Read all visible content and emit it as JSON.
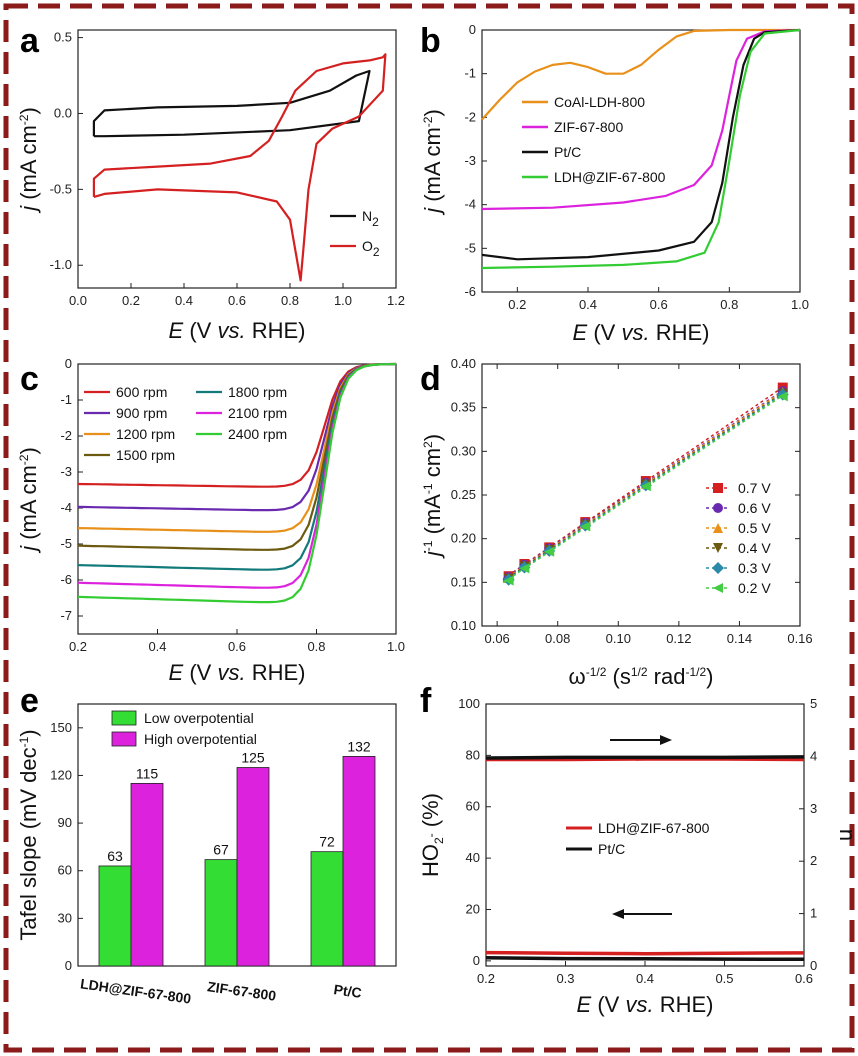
{
  "colors": {
    "border": "#8b1a1a",
    "green": "#33cc33",
    "magenta": "#dd22dd",
    "orange": "#e8901a",
    "black": "#111111",
    "red": "#d42020",
    "purple": "#6a2ab0",
    "olive": "#6b5a10",
    "teal": "#127a7a",
    "diamond_blue": "#2a8aa8",
    "dot_green": "#44cc44"
  },
  "chart_data": [
    {
      "panel": "a",
      "type": "line",
      "xlabel": "E (V vs. RHE)",
      "ylabel": "j (mA cm-2)",
      "xlim": [
        0,
        1.2
      ],
      "ylim": [
        -1.15,
        0.55
      ],
      "xticks": [
        "0.0",
        "0.2",
        "0.4",
        "0.6",
        "0.8",
        "1.0",
        "1.2"
      ],
      "xtick_vals": [
        0,
        0.2,
        0.4,
        0.6,
        0.8,
        1.0,
        1.2
      ],
      "yticks": [
        "0.5",
        "0.0",
        "-0.5",
        "-1.0"
      ],
      "ytick_vals": [
        0.5,
        0,
        -0.5,
        -1.0
      ],
      "series": [
        {
          "name": "N2",
          "label": "N",
          "sub": "2",
          "color": "#111111",
          "points": [
            [
              0.06,
              -0.15
            ],
            [
              0.06,
              -0.05
            ],
            [
              0.1,
              0.02
            ],
            [
              0.3,
              0.04
            ],
            [
              0.6,
              0.05
            ],
            [
              0.8,
              0.07
            ],
            [
              0.95,
              0.15
            ],
            [
              1.05,
              0.25
            ],
            [
              1.1,
              0.28
            ],
            [
              1.06,
              -0.05
            ],
            [
              0.8,
              -0.11
            ],
            [
              0.4,
              -0.14
            ],
            [
              0.1,
              -0.15
            ],
            [
              0.06,
              -0.15
            ]
          ]
        },
        {
          "name": "O2",
          "label": "O",
          "sub": "2",
          "color": "#d42020",
          "points": [
            [
              0.06,
              -0.55
            ],
            [
              0.06,
              -0.43
            ],
            [
              0.1,
              -0.37
            ],
            [
              0.3,
              -0.35
            ],
            [
              0.5,
              -0.33
            ],
            [
              0.65,
              -0.28
            ],
            [
              0.72,
              -0.18
            ],
            [
              0.77,
              -0.02
            ],
            [
              0.82,
              0.15
            ],
            [
              0.9,
              0.28
            ],
            [
              1.0,
              0.33
            ],
            [
              1.1,
              0.35
            ],
            [
              1.15,
              0.37
            ],
            [
              1.16,
              0.39
            ],
            [
              1.15,
              0.15
            ],
            [
              1.06,
              -0.02
            ],
            [
              0.96,
              -0.1
            ],
            [
              0.9,
              -0.2
            ],
            [
              0.87,
              -0.5
            ],
            [
              0.85,
              -0.9
            ],
            [
              0.84,
              -1.1
            ],
            [
              0.82,
              -0.9
            ],
            [
              0.8,
              -0.7
            ],
            [
              0.75,
              -0.58
            ],
            [
              0.6,
              -0.52
            ],
            [
              0.3,
              -0.5
            ],
            [
              0.1,
              -0.53
            ],
            [
              0.06,
              -0.55
            ]
          ]
        }
      ]
    },
    {
      "panel": "b",
      "type": "line",
      "xlabel": "E (V vs. RHE)",
      "ylabel": "j (mA cm-2)",
      "xlim": [
        0.1,
        1.0
      ],
      "ylim": [
        -6,
        0
      ],
      "xticks": [
        "0.2",
        "0.4",
        "0.6",
        "0.8",
        "1.0"
      ],
      "xtick_vals": [
        0.2,
        0.4,
        0.6,
        0.8,
        1.0
      ],
      "yticks": [
        "0",
        "-1",
        "-2",
        "-3",
        "-4",
        "-5",
        "-6"
      ],
      "ytick_vals": [
        0,
        -1,
        -2,
        -3,
        -4,
        -5,
        -6
      ],
      "series": [
        {
          "name": "CoAl-LDH-800",
          "color": "#e8901a",
          "points": [
            [
              0.1,
              -2.05
            ],
            [
              0.15,
              -1.6
            ],
            [
              0.2,
              -1.2
            ],
            [
              0.25,
              -0.95
            ],
            [
              0.3,
              -0.8
            ],
            [
              0.35,
              -0.75
            ],
            [
              0.4,
              -0.85
            ],
            [
              0.45,
              -1.0
            ],
            [
              0.5,
              -1.0
            ],
            [
              0.55,
              -0.8
            ],
            [
              0.6,
              -0.45
            ],
            [
              0.65,
              -0.15
            ],
            [
              0.7,
              -0.02
            ],
            [
              0.8,
              0
            ],
            [
              1.0,
              0
            ]
          ]
        },
        {
          "name": "ZIF-67-800",
          "color": "#dd22dd",
          "points": [
            [
              0.1,
              -4.1
            ],
            [
              0.3,
              -4.07
            ],
            [
              0.5,
              -3.95
            ],
            [
              0.62,
              -3.8
            ],
            [
              0.7,
              -3.55
            ],
            [
              0.75,
              -3.1
            ],
            [
              0.78,
              -2.3
            ],
            [
              0.8,
              -1.5
            ],
            [
              0.82,
              -0.7
            ],
            [
              0.85,
              -0.2
            ],
            [
              0.9,
              -0.03
            ],
            [
              1.0,
              0
            ]
          ]
        },
        {
          "name": "Pt/C",
          "color": "#111111",
          "points": [
            [
              0.1,
              -5.15
            ],
            [
              0.2,
              -5.25
            ],
            [
              0.4,
              -5.2
            ],
            [
              0.6,
              -5.05
            ],
            [
              0.7,
              -4.85
            ],
            [
              0.75,
              -4.4
            ],
            [
              0.78,
              -3.5
            ],
            [
              0.81,
              -2.0
            ],
            [
              0.84,
              -0.8
            ],
            [
              0.87,
              -0.2
            ],
            [
              0.9,
              -0.05
            ],
            [
              1.0,
              0
            ]
          ]
        },
        {
          "name": "LDH@ZIF-67-800",
          "color": "#33cc33",
          "points": [
            [
              0.1,
              -5.45
            ],
            [
              0.3,
              -5.42
            ],
            [
              0.5,
              -5.38
            ],
            [
              0.65,
              -5.3
            ],
            [
              0.73,
              -5.1
            ],
            [
              0.77,
              -4.4
            ],
            [
              0.8,
              -3.0
            ],
            [
              0.83,
              -1.5
            ],
            [
              0.86,
              -0.5
            ],
            [
              0.9,
              -0.08
            ],
            [
              1.0,
              0
            ]
          ]
        }
      ]
    },
    {
      "panel": "c",
      "type": "line",
      "xlabel": "E (V vs. RHE)",
      "ylabel": "j (mA cm-2)",
      "xlim": [
        0.2,
        1.0
      ],
      "ylim": [
        -7.5,
        0
      ],
      "xticks": [
        "0.2",
        "0.4",
        "0.6",
        "0.8",
        "1.0"
      ],
      "xtick_vals": [
        0.2,
        0.4,
        0.6,
        0.8,
        1.0
      ],
      "yticks": [
        "0",
        "-1",
        "-2",
        "-3",
        "-4",
        "-5",
        "-6",
        "-7"
      ],
      "ytick_vals": [
        0,
        -1,
        -2,
        -3,
        -4,
        -5,
        -6,
        -7
      ],
      "series": [
        {
          "name": "600 rpm",
          "color": "#d42020",
          "plateau": -3.4
        },
        {
          "name": "900 rpm",
          "color": "#6a2ab0",
          "plateau": -4.05
        },
        {
          "name": "1200 rpm",
          "color": "#e8901a",
          "plateau": -4.65
        },
        {
          "name": "1500 rpm",
          "color": "#6b5a10",
          "plateau": -5.15
        },
        {
          "name": "1800 rpm",
          "color": "#127a7a",
          "plateau": -5.7
        },
        {
          "name": "2100 rpm",
          "color": "#dd22dd",
          "plateau": -6.2
        },
        {
          "name": "2400 rpm",
          "color": "#33cc33",
          "plateau": -6.6
        }
      ]
    },
    {
      "panel": "d",
      "type": "scatter",
      "xlabel": "ω-1/2 (s1/2 rad-1/2)",
      "ylabel": "j-1 (mA-1 cm2)",
      "xlim": [
        0.055,
        0.16
      ],
      "ylim": [
        0.1,
        0.4
      ],
      "xticks": [
        "0.06",
        "0.08",
        "0.10",
        "0.12",
        "0.14",
        "0.16"
      ],
      "xtick_vals": [
        0.06,
        0.08,
        0.1,
        0.12,
        0.14,
        0.16
      ],
      "yticks": [
        "0.40",
        "0.35",
        "0.30",
        "0.25",
        "0.20",
        "0.15",
        "0.10"
      ],
      "ytick_vals": [
        0.4,
        0.35,
        0.3,
        0.25,
        0.2,
        0.15,
        0.1
      ],
      "x": [
        0.0638,
        0.069,
        0.0772,
        0.0891,
        0.1091,
        0.1543
      ],
      "series": [
        {
          "name": "0.7 V",
          "color": "#d42020",
          "marker": "square",
          "values": [
            0.157,
            0.171,
            0.19,
            0.219,
            0.266,
            0.373
          ]
        },
        {
          "name": "0.6 V",
          "color": "#6a2ab0",
          "marker": "circle",
          "values": [
            0.156,
            0.17,
            0.189,
            0.218,
            0.264,
            0.369
          ]
        },
        {
          "name": "0.5 V",
          "color": "#e8901a",
          "marker": "triangle-up",
          "values": [
            0.155,
            0.169,
            0.188,
            0.217,
            0.263,
            0.368
          ]
        },
        {
          "name": "0.4 V",
          "color": "#6b5a10",
          "marker": "triangle-down",
          "values": [
            0.154,
            0.168,
            0.187,
            0.216,
            0.262,
            0.366
          ]
        },
        {
          "name": "0.3 V",
          "color": "#2a8aa8",
          "marker": "diamond",
          "values": [
            0.153,
            0.167,
            0.186,
            0.215,
            0.261,
            0.365
          ]
        },
        {
          "name": "0.2 V",
          "color": "#44cc44",
          "marker": "triangle-left",
          "values": [
            0.152,
            0.166,
            0.185,
            0.214,
            0.26,
            0.363
          ]
        }
      ]
    },
    {
      "panel": "e",
      "type": "bar",
      "ylabel": "Tafel slope (mV dec-1)",
      "ylim": [
        0,
        165
      ],
      "yticks": [
        "0",
        "30",
        "60",
        "90",
        "120",
        "150"
      ],
      "ytick_vals": [
        0,
        30,
        60,
        90,
        120,
        150
      ],
      "categories": [
        "LDH@ZIF-67-800",
        "ZIF-67-800",
        "Pt/C"
      ],
      "series": [
        {
          "name": "Low overpotential",
          "color": "#33dd33",
          "values": [
            63,
            67,
            72
          ],
          "labels": [
            "63",
            "67",
            "72"
          ]
        },
        {
          "name": "High overpotential",
          "color": "#dd22dd",
          "values": [
            115,
            125,
            132
          ],
          "labels": [
            "115",
            "125",
            "132"
          ]
        }
      ]
    },
    {
      "panel": "f",
      "type": "line",
      "xlabel": "E (V vs. RHE)",
      "ylabel": "HO2- (%)",
      "y2label": "n",
      "xlim": [
        0.2,
        0.6
      ],
      "ylim": [
        -2,
        100
      ],
      "y2lim": [
        0,
        5
      ],
      "xticks": [
        "0.2",
        "0.3",
        "0.4",
        "0.5",
        "0.6"
      ],
      "xtick_vals": [
        0.2,
        0.3,
        0.4,
        0.5,
        0.6
      ],
      "yticks": [
        "100",
        "80",
        "60",
        "40",
        "20",
        "0"
      ],
      "ytick_vals": [
        100,
        80,
        60,
        40,
        20,
        0
      ],
      "y2ticks": [
        "5",
        "4",
        "3",
        "2",
        "1",
        "0"
      ],
      "y2tick_vals": [
        5,
        4,
        3,
        2,
        1,
        0
      ],
      "series": [
        {
          "name": "LDH@ZIF-67-800",
          "color": "#d42020",
          "ho2": [
            3.2,
            3.0,
            2.8,
            3.0,
            3.1
          ],
          "n": [
            3.94,
            3.94,
            3.95,
            3.95,
            3.94
          ]
        },
        {
          "name": "Pt/C",
          "color": "#111111",
          "ho2": [
            1.2,
            0.9,
            0.8,
            0.7,
            0.6
          ],
          "n": [
            3.97,
            3.98,
            3.98,
            3.98,
            3.99
          ]
        }
      ]
    }
  ],
  "labels": {
    "a": "a",
    "b": "b",
    "c": "c",
    "d": "d",
    "e": "e",
    "f": "f"
  }
}
